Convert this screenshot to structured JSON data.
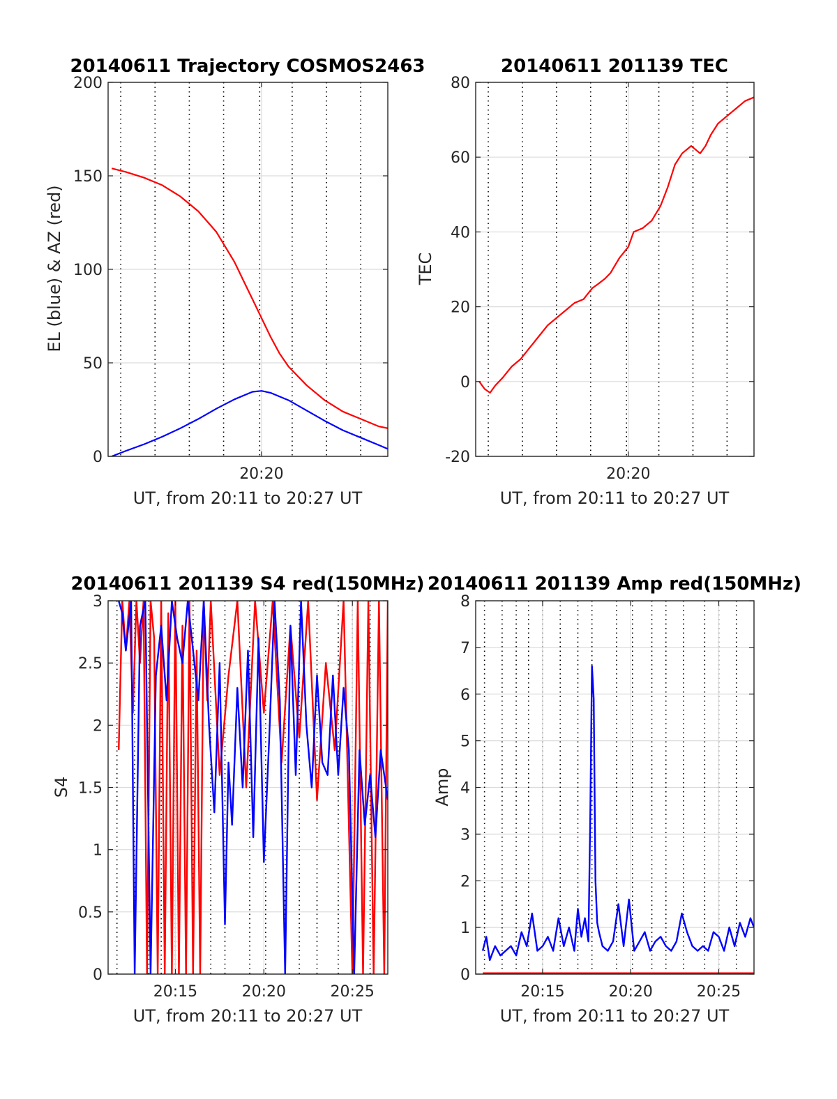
{
  "chart_data": [
    {
      "id": "trajectory",
      "type": "line",
      "title": "20140611 Trajectory COSMOS2463",
      "xlabel": "UT, from 20:11 to 20:27 UT",
      "ylabel": "EL (blue) & AZ (red)",
      "x_unit": "minutes after 20:00 UT",
      "xlim": [
        11.5,
        27
      ],
      "ylim": [
        0,
        200
      ],
      "yticks": [
        0,
        50,
        100,
        150,
        200
      ],
      "xticks": [
        {
          "value": 20,
          "label": "20:20"
        }
      ],
      "minor_x_grid": [
        12.2,
        14.1,
        16.0,
        17.9,
        19.9,
        21.7,
        23.6,
        25.5
      ],
      "grid": true,
      "series": [
        {
          "color": "#ff0000",
          "x": [
            11.7,
            12.5,
            13.5,
            14.5,
            15.5,
            16.5,
            17.5,
            18.5,
            19.0,
            19.5,
            20.0,
            20.5,
            21.0,
            21.5,
            22.5,
            23.5,
            24.5,
            25.5,
            26.5,
            27.0
          ],
          "values": [
            154,
            152,
            149,
            145,
            139,
            131,
            120,
            104,
            94,
            84,
            74,
            64,
            55,
            48,
            38,
            30,
            24,
            20,
            16,
            15
          ]
        },
        {
          "color": "#0000ff",
          "x": [
            11.7,
            12.5,
            13.5,
            14.5,
            15.5,
            16.5,
            17.5,
            18.5,
            19.5,
            20.0,
            20.5,
            21.5,
            22.5,
            23.5,
            24.5,
            25.5,
            26.5,
            27.0
          ],
          "values": [
            0,
            3,
            6.5,
            10.5,
            15,
            20,
            25.5,
            30.5,
            34.5,
            35,
            34,
            30,
            24.5,
            19,
            14,
            10,
            6,
            4
          ]
        }
      ]
    },
    {
      "id": "tec",
      "type": "line",
      "title": "20140611 201139 TEC",
      "xlabel": "UT, from 20:11 to 20:27 UT",
      "ylabel": "TEC",
      "x_unit": "minutes after 20:00 UT",
      "xlim": [
        11.5,
        27
      ],
      "ylim": [
        -20,
        80
      ],
      "yticks": [
        -20,
        0,
        20,
        40,
        60,
        80
      ],
      "xticks": [
        {
          "value": 20,
          "label": "20:20"
        }
      ],
      "minor_x_grid": [
        12.2,
        14.1,
        16.0,
        17.9,
        19.9,
        21.7,
        23.6,
        25.5
      ],
      "grid": true,
      "series": [
        {
          "color": "#ff0000",
          "x": [
            11.7,
            12.0,
            12.3,
            12.6,
            13.0,
            13.5,
            14.0,
            14.5,
            15.0,
            15.5,
            16.0,
            16.5,
            17.0,
            17.5,
            18.0,
            18.3,
            18.7,
            19.0,
            19.5,
            20.0,
            20.3,
            20.8,
            21.3,
            21.8,
            22.2,
            22.6,
            23.0,
            23.5,
            24.0,
            24.3,
            24.6,
            25.0,
            25.5,
            26.0,
            26.5,
            27.0
          ],
          "values": [
            0,
            -2,
            -3,
            -1,
            1,
            4,
            6,
            9,
            12,
            15,
            17,
            19,
            21,
            22,
            25,
            26,
            27.5,
            29,
            33,
            36,
            40,
            41,
            43,
            47,
            52,
            58,
            61,
            63,
            61,
            63,
            66,
            69,
            71,
            73,
            75,
            76
          ]
        }
      ]
    },
    {
      "id": "s4",
      "type": "line",
      "title": "20140611 201139 S4 red(150MHz)",
      "xlabel": "UT, from 20:11 to 20:27 UT",
      "ylabel": "S4",
      "x_unit": "minutes after 20:00 UT",
      "xlim": [
        11.2,
        27
      ],
      "ylim": [
        0,
        3
      ],
      "yticks": [
        0,
        0.5,
        1,
        1.5,
        2,
        2.5,
        3
      ],
      "xticks": [
        {
          "value": 15,
          "label": "20:15"
        },
        {
          "value": 20,
          "label": "20:20"
        },
        {
          "value": 25,
          "label": "20:25"
        }
      ],
      "minor_x_grid": [
        11.7,
        12.7,
        13.5,
        14.2,
        15.0,
        16.0,
        17.0,
        17.8,
        19.2,
        20.1,
        21.2,
        22.0,
        23.0,
        24.2,
        25.0,
        26.0
      ],
      "grid": true,
      "series": [
        {
          "color": "#ff0000",
          "description": "dense scintillation trace, mostly saturated near top with dropouts to zero",
          "x": [
            11.8,
            12.0,
            12.2,
            12.4,
            12.6,
            12.8,
            13.0,
            13.2,
            13.4,
            13.6,
            13.8,
            14.0,
            14.2,
            14.4,
            14.6,
            14.8,
            15.0,
            15.2,
            15.4,
            15.6,
            15.8,
            16.0,
            16.2,
            16.4,
            16.6,
            16.8,
            17.0,
            17.5,
            18.0,
            18.5,
            19.0,
            19.5,
            20.0,
            20.5,
            21.0,
            21.5,
            22.0,
            22.5,
            23.0,
            23.5,
            24.0,
            24.5,
            25.0,
            25.3,
            25.6,
            25.9,
            26.2,
            26.5,
            26.8,
            27.0
          ],
          "values": [
            1.8,
            3.0,
            2.6,
            3.0,
            2.1,
            3.0,
            2.5,
            3.0,
            0.0,
            3.0,
            2.7,
            0.0,
            3.0,
            0.0,
            2.9,
            0.0,
            3.0,
            0.0,
            2.8,
            0.0,
            3.0,
            0.0,
            2.6,
            0.0,
            3.0,
            2.2,
            3.0,
            1.6,
            2.4,
            3.0,
            1.5,
            3.0,
            2.1,
            3.0,
            1.7,
            2.8,
            1.9,
            3.0,
            1.4,
            2.5,
            1.8,
            3.0,
            0.0,
            3.0,
            0.0,
            3.0,
            0.0,
            3.0,
            0.0,
            3.0
          ]
        },
        {
          "color": "#0000ff",
          "description": "dense scintillation trace with deep dropouts",
          "x": [
            11.8,
            12.0,
            12.2,
            12.5,
            12.7,
            13.0,
            13.3,
            13.6,
            13.9,
            14.2,
            14.5,
            14.8,
            15.1,
            15.4,
            15.7,
            16.0,
            16.3,
            16.6,
            16.9,
            17.2,
            17.5,
            17.8,
            18.0,
            18.2,
            18.5,
            18.8,
            19.1,
            19.4,
            19.7,
            20.0,
            20.3,
            20.6,
            20.9,
            21.2,
            21.5,
            21.8,
            22.1,
            22.4,
            22.7,
            23.0,
            23.3,
            23.6,
            23.9,
            24.2,
            24.5,
            24.8,
            25.1,
            25.4,
            25.7,
            26.0,
            26.3,
            26.6,
            27.0
          ],
          "values": [
            3.0,
            2.9,
            2.6,
            3.0,
            0.0,
            2.8,
            3.0,
            0.0,
            2.4,
            2.8,
            2.2,
            3.0,
            2.7,
            2.5,
            3.0,
            2.6,
            2.2,
            3.0,
            2.0,
            1.3,
            2.5,
            0.4,
            1.7,
            1.2,
            2.3,
            1.5,
            2.6,
            1.1,
            2.7,
            0.9,
            1.9,
            3.0,
            2.2,
            0.0,
            2.8,
            1.6,
            3.0,
            2.0,
            1.5,
            2.4,
            1.7,
            1.6,
            2.4,
            1.6,
            2.3,
            1.8,
            0.0,
            1.8,
            1.2,
            1.6,
            1.1,
            1.8,
            1.4
          ]
        }
      ]
    },
    {
      "id": "amp",
      "type": "line",
      "title": "20140611 201139 Amp red(150MHz)",
      "xlabel": "UT, from 20:11 to 20:27 UT",
      "ylabel": "Amp",
      "x_unit": "minutes after 20:00 UT",
      "xlim": [
        11.2,
        27
      ],
      "ylim": [
        0,
        8
      ],
      "yticks": [
        0,
        1,
        2,
        3,
        4,
        5,
        6,
        7,
        8
      ],
      "xticks": [
        {
          "value": 15,
          "label": "20:15"
        },
        {
          "value": 20,
          "label": "20:20"
        },
        {
          "value": 25,
          "label": "20:25"
        }
      ],
      "minor_x_grid": [
        11.7,
        12.7,
        13.5,
        14.2,
        15.0,
        16.0,
        17.0,
        17.8,
        19.2,
        20.1,
        21.2,
        22.0,
        23.0,
        24.2,
        25.0,
        26.0
      ],
      "grid": true,
      "series": [
        {
          "color": "#0000ff",
          "description": "amplitude fluctuations with a sharp peak near 20:18",
          "x": [
            11.6,
            11.8,
            12.0,
            12.3,
            12.6,
            12.9,
            13.2,
            13.5,
            13.8,
            14.1,
            14.4,
            14.7,
            15.0,
            15.3,
            15.6,
            15.9,
            16.2,
            16.5,
            16.8,
            17.0,
            17.2,
            17.4,
            17.6,
            17.7,
            17.8,
            17.9,
            18.0,
            18.1,
            18.2,
            18.4,
            18.7,
            19.0,
            19.3,
            19.6,
            19.9,
            20.2,
            20.5,
            20.8,
            21.1,
            21.4,
            21.7,
            22.0,
            22.3,
            22.6,
            22.9,
            23.2,
            23.5,
            23.8,
            24.1,
            24.4,
            24.7,
            25.0,
            25.3,
            25.6,
            25.9,
            26.2,
            26.5,
            26.8,
            27.0
          ],
          "values": [
            0.5,
            0.8,
            0.3,
            0.6,
            0.4,
            0.5,
            0.6,
            0.4,
            0.9,
            0.6,
            1.3,
            0.5,
            0.6,
            0.8,
            0.5,
            1.2,
            0.6,
            1.0,
            0.5,
            1.4,
            0.8,
            1.2,
            0.7,
            3.2,
            6.6,
            5.9,
            2.0,
            1.1,
            0.9,
            0.6,
            0.5,
            0.7,
            1.5,
            0.6,
            1.6,
            0.5,
            0.7,
            0.9,
            0.5,
            0.7,
            0.8,
            0.6,
            0.5,
            0.7,
            1.3,
            0.9,
            0.6,
            0.5,
            0.6,
            0.5,
            0.9,
            0.8,
            0.5,
            1.0,
            0.6,
            1.1,
            0.8,
            1.2,
            1.0
          ]
        },
        {
          "color": "#ff0000",
          "description": "baseline trace mostly hidden under blue",
          "x": [
            11.6,
            27.0
          ],
          "values": [
            0.02,
            0.02
          ]
        }
      ]
    }
  ]
}
